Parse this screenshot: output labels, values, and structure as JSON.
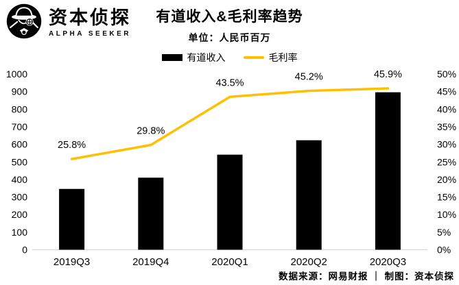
{
  "brand": {
    "name_cn": "资本侦探",
    "name_en": "ALPHA SEEKER"
  },
  "header": {
    "title": "有道收入&毛利率趋势",
    "subtitle": "单位：人民币百万"
  },
  "legend": {
    "items": [
      {
        "label": "有道收入",
        "type": "bar"
      },
      {
        "label": "毛利率",
        "type": "line"
      }
    ]
  },
  "colors": {
    "bar": "#000000",
    "line": "#FFC000",
    "axis_line": "#D9D9D9",
    "bar_label": "#FFFFFF",
    "text": "#000000"
  },
  "chart_data": {
    "type": "bar",
    "subtype": "combo-bar-line-dual-axis",
    "title": "有道收入&毛利率趋势",
    "unit_label": "单位：人民币百万",
    "categories": [
      "2019Q3",
      "2019Q4",
      "2020Q1",
      "2020Q2",
      "2020Q3"
    ],
    "series": [
      {
        "name": "有道收入",
        "type": "bar",
        "axis": "left",
        "values": [
          346,
          410,
          541,
          623,
          896
        ],
        "labels": [
          "346",
          "410",
          "541",
          "623",
          "896"
        ]
      },
      {
        "name": "毛利率",
        "type": "line",
        "axis": "right",
        "values": [
          25.8,
          29.8,
          43.5,
          45.2,
          45.9
        ],
        "labels": [
          "25.8%",
          "29.8%",
          "43.5%",
          "45.2%",
          "45.9%"
        ]
      }
    ],
    "left_axis": {
      "min": 0,
      "max": 1000,
      "step": 100,
      "ticks": [
        "0",
        "100",
        "200",
        "300",
        "400",
        "500",
        "600",
        "700",
        "800",
        "900",
        "1000"
      ]
    },
    "right_axis": {
      "min": 0,
      "max": 50,
      "step": 5,
      "ticks": [
        "0%",
        "5%",
        "10%",
        "15%",
        "20%",
        "25%",
        "30%",
        "35%",
        "40%",
        "45%",
        "50%"
      ]
    },
    "grid": false,
    "legend_position": "top"
  },
  "footer": {
    "credit": "数据来源：网易财报 ｜ 制图：资本侦探"
  }
}
